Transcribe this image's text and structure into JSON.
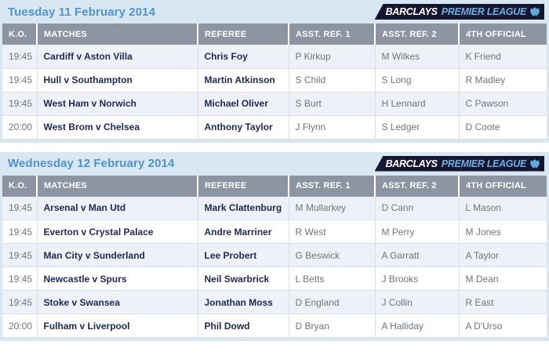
{
  "logo": {
    "barclays": "BARCLAYS",
    "premier_league": "PREMIER LEAGUE",
    "lion_icon": "lion-crest-icon"
  },
  "columns": [
    "K.O.",
    "MATCHES",
    "REFEREE",
    "ASST. REF. 1",
    "ASST. REF. 2",
    "4TH OFFICIAL"
  ],
  "colors": {
    "section-bg": "#d9e7f3",
    "title-color": "#4f94ca",
    "header-bg": "#8d95a3",
    "row-alt": "#eef2f8",
    "cell-border": "#d9dfe9",
    "dark-text": "#1e2950",
    "gray-text": "#6e747f",
    "logo-bg": "#161630",
    "logo-premier": "#71aede",
    "lion": "#5fa8dd"
  },
  "tables": [
    {
      "title": "Tuesday 11 February 2014",
      "rows": [
        {
          "ko": "19:45",
          "match": "Cardiff v Aston Villa",
          "referee": "Chris Foy",
          "ar1": "P Kirkup",
          "ar2": "M Wilkes",
          "fourth": "K Friend"
        },
        {
          "ko": "19:45",
          "match": "Hull v Southampton",
          "referee": "Martin Atkinson",
          "ar1": "S Child",
          "ar2": "S Long",
          "fourth": "R Madley"
        },
        {
          "ko": "19:45",
          "match": "West Ham v Norwich",
          "referee": "Michael Oliver",
          "ar1": "S Burt",
          "ar2": "H Lennard",
          "fourth": "C Pawson"
        },
        {
          "ko": "20:00",
          "match": "West Brom v Chelsea",
          "referee": "Anthony Taylor",
          "ar1": "J Flynn",
          "ar2": "S Ledger",
          "fourth": "D Coote"
        }
      ]
    },
    {
      "title": "Wednesday 12 February 2014",
      "rows": [
        {
          "ko": "19:45",
          "match": "Arsenal v Man Utd",
          "referee": "Mark Clattenburg",
          "ar1": "M Mullarkey",
          "ar2": "D Cann",
          "fourth": "L Mason"
        },
        {
          "ko": "19:45",
          "match": "Everton v Crystal Palace",
          "referee": "Andre Marriner",
          "ar1": "R West",
          "ar2": "M Perry",
          "fourth": "M Jones"
        },
        {
          "ko": "19:45",
          "match": "Man City v Sunderland",
          "referee": "Lee Probert",
          "ar1": "G Beswick",
          "ar2": "A Garratt",
          "fourth": "A Taylor"
        },
        {
          "ko": "19:45",
          "match": "Newcastle v Spurs",
          "referee": "Neil Swarbrick",
          "ar1": "L Betts",
          "ar2": "J Brooks",
          "fourth": "M Dean"
        },
        {
          "ko": "19:45",
          "match": "Stoke v Swansea",
          "referee": "Jonathan Moss",
          "ar1": "D England",
          "ar2": "J Collin",
          "fourth": "R East"
        },
        {
          "ko": "20:00",
          "match": "Fulham v Liverpool",
          "referee": "Phil Dowd",
          "ar1": "D Bryan",
          "ar2": "A Halliday",
          "fourth": "A D'Urso"
        }
      ]
    }
  ]
}
